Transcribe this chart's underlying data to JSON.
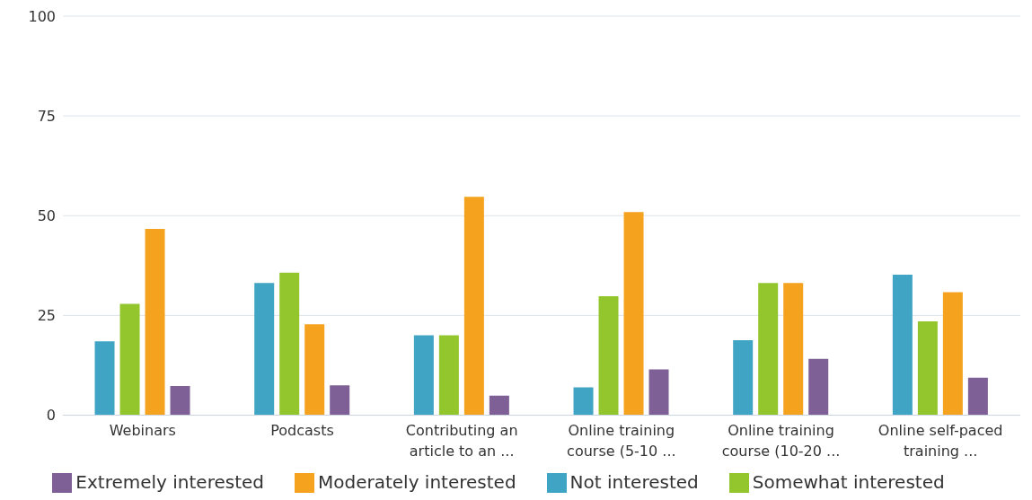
{
  "chart_data": {
    "type": "bar",
    "categories": [
      "Webinars",
      "Podcasts",
      "Contributing an article to an ...",
      "Online training course (5-10 ...",
      "Online training course (10-20 ...",
      "Online self-paced training ..."
    ],
    "series": [
      {
        "name": "Not interested",
        "color": "#40a4c4",
        "values": [
          18.5,
          33.1,
          20.0,
          7.0,
          18.8,
          35.2
        ]
      },
      {
        "name": "Somewhat interested",
        "color": "#93c62c",
        "values": [
          27.9,
          35.7,
          20.0,
          29.8,
          33.1,
          23.5
        ]
      },
      {
        "name": "Moderately interested",
        "color": "#f5a21f",
        "values": [
          46.7,
          22.8,
          54.7,
          50.9,
          33.1,
          30.8
        ]
      },
      {
        "name": "Extremely interested",
        "color": "#7e6096",
        "values": [
          7.3,
          7.5,
          4.9,
          11.5,
          14.1,
          9.4
        ]
      }
    ],
    "ylim": [
      0,
      100
    ],
    "yticks": [
      0,
      25,
      50,
      75,
      100
    ],
    "grid": "y",
    "legend": "bottom"
  }
}
